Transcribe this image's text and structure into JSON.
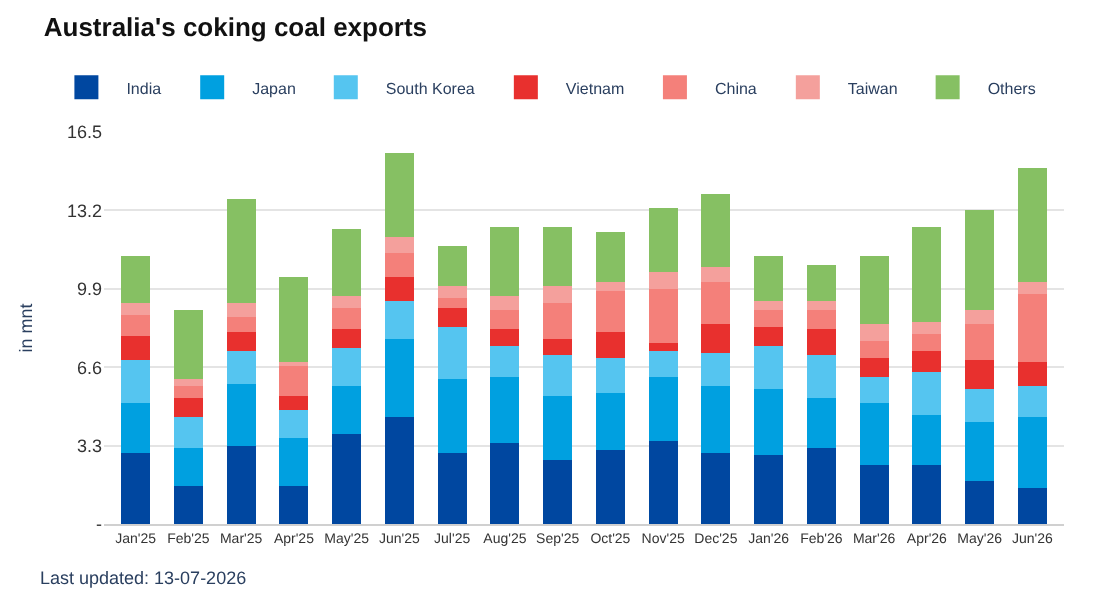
{
  "chart_data": {
    "type": "bar",
    "stacked": true,
    "title": "Australia's coking coal exports",
    "ylabel": "in mnt",
    "categories": [
      "Jan'25",
      "Feb'25",
      "Mar'25",
      "Apr'25",
      "May'25",
      "Jun'25",
      "Jul'25",
      "Aug'25",
      "Sep'25",
      "Oct'25",
      "Nov'25",
      "Dec'25",
      "Jan'26",
      "Feb'26",
      "Mar'26",
      "Apr'26",
      "May'26",
      "Jun'26"
    ],
    "series": [
      {
        "name": "India",
        "color": "#0047a0",
        "values": [
          3.0,
          1.6,
          3.3,
          1.6,
          3.8,
          4.5,
          3.0,
          3.4,
          2.7,
          3.1,
          3.5,
          3.0,
          2.9,
          3.2,
          2.5,
          2.5,
          1.8,
          1.5
        ]
      },
      {
        "name": "Japan",
        "color": "#00a0e0",
        "values": [
          2.1,
          1.6,
          2.6,
          2.0,
          2.0,
          3.3,
          3.1,
          2.8,
          2.7,
          2.4,
          2.7,
          2.8,
          2.8,
          2.1,
          2.6,
          2.1,
          2.5,
          3.0
        ]
      },
      {
        "name": "South Korea",
        "color": "#55c5f0",
        "values": [
          1.8,
          1.3,
          1.4,
          1.2,
          1.6,
          1.6,
          2.2,
          1.3,
          1.7,
          1.5,
          1.1,
          1.4,
          1.8,
          1.8,
          1.1,
          1.8,
          1.4,
          1.3
        ]
      },
      {
        "name": "Vietnam",
        "color": "#e8302e",
        "values": [
          1.0,
          0.8,
          0.8,
          0.6,
          0.8,
          1.0,
          0.8,
          0.7,
          0.7,
          1.1,
          0.3,
          1.2,
          0.8,
          1.1,
          0.8,
          0.9,
          1.2,
          1.0
        ]
      },
      {
        "name": "China",
        "color": "#f4807a",
        "values": [
          0.9,
          0.5,
          0.6,
          1.3,
          0.9,
          1.0,
          0.4,
          0.8,
          1.5,
          1.7,
          2.3,
          1.8,
          0.7,
          0.8,
          0.7,
          0.7,
          1.5,
          2.9
        ]
      },
      {
        "name": "Taiwan",
        "color": "#f4a09c",
        "values": [
          0.5,
          0.3,
          0.6,
          0.1,
          0.5,
          0.7,
          0.5,
          0.6,
          0.7,
          0.4,
          0.7,
          0.6,
          0.4,
          0.4,
          0.7,
          0.5,
          0.6,
          0.5
        ]
      },
      {
        "name": "Others",
        "color": "#86c063",
        "values": [
          2.0,
          2.9,
          4.4,
          3.6,
          2.8,
          3.5,
          1.7,
          2.9,
          2.5,
          2.1,
          2.7,
          3.1,
          1.9,
          1.5,
          2.9,
          4.0,
          4.2,
          4.8
        ]
      }
    ],
    "ylim": [
      0,
      16.5
    ],
    "yticks": [
      {
        "value": 0,
        "label": "-"
      },
      3.3,
      6.6,
      9.9,
      13.2,
      16.5
    ],
    "grid": "y",
    "legend": "top left",
    "annotations": [
      "Last updated: 13-07-2026"
    ]
  }
}
